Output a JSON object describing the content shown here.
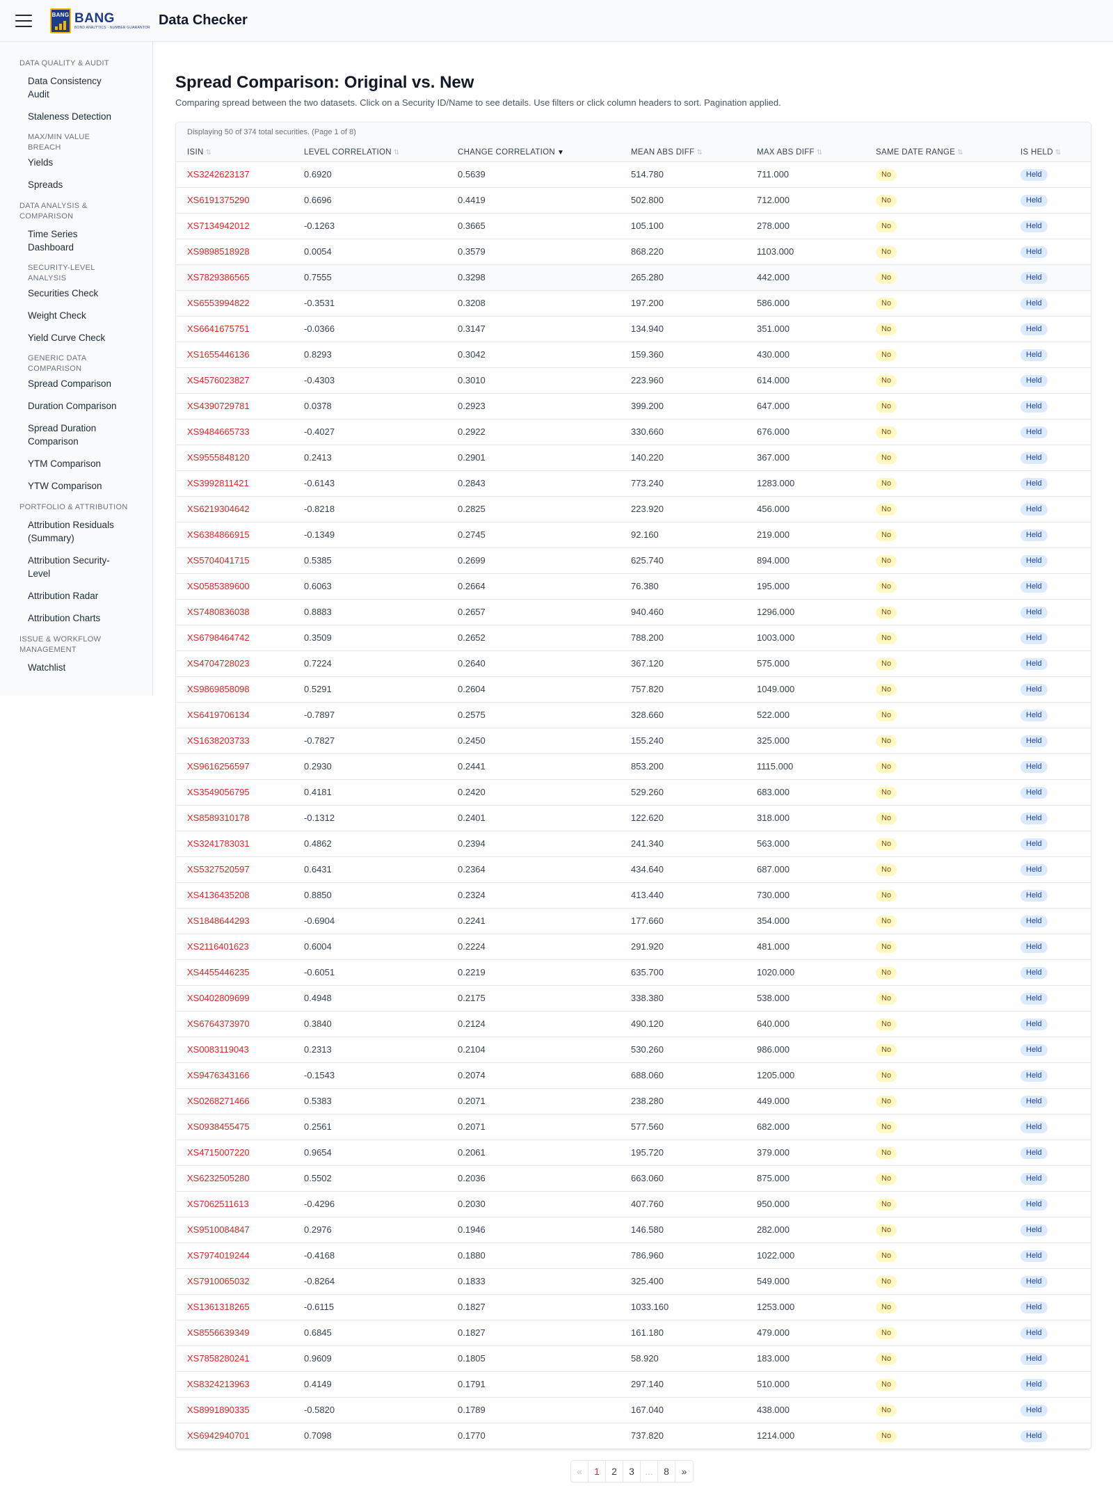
{
  "header": {
    "app_title": "Data Checker",
    "logo_mark": "BANG",
    "logo_name": "BANG",
    "logo_tagline": "BOND ANALYTICS · NUMBER GUARANTOR"
  },
  "sidebar": {
    "sections": [
      {
        "title": "DATA QUALITY & AUDIT",
        "entries": [
          {
            "type": "item",
            "label": "Data Consistency Audit"
          },
          {
            "type": "item",
            "label": "Staleness Detection"
          },
          {
            "type": "sub",
            "label": "MAX/MIN VALUE BREACH"
          },
          {
            "type": "item",
            "label": "Yields"
          },
          {
            "type": "item",
            "label": "Spreads"
          }
        ]
      },
      {
        "title": "DATA ANALYSIS & COMPARISON",
        "entries": [
          {
            "type": "item",
            "label": "Time Series Dashboard"
          },
          {
            "type": "sub",
            "label": "SECURITY-LEVEL ANALYSIS"
          },
          {
            "type": "item",
            "label": "Securities Check"
          },
          {
            "type": "item",
            "label": "Weight Check"
          },
          {
            "type": "item",
            "label": "Yield Curve Check"
          },
          {
            "type": "sub",
            "label": "GENERIC DATA COMPARISON"
          },
          {
            "type": "item",
            "label": "Spread Comparison"
          },
          {
            "type": "item",
            "label": "Duration Comparison"
          },
          {
            "type": "item",
            "label": "Spread Duration Comparison"
          },
          {
            "type": "item",
            "label": "YTM Comparison"
          },
          {
            "type": "item",
            "label": "YTW Comparison"
          }
        ]
      },
      {
        "title": "PORTFOLIO & ATTRIBUTION",
        "entries": [
          {
            "type": "item",
            "label": "Attribution Residuals (Summary)"
          },
          {
            "type": "item",
            "label": "Attribution Security-Level"
          },
          {
            "type": "item",
            "label": "Attribution Radar"
          },
          {
            "type": "item",
            "label": "Attribution Charts"
          }
        ]
      },
      {
        "title": "ISSUE & WORKFLOW MANAGEMENT",
        "entries": [
          {
            "type": "item",
            "label": "Watchlist"
          }
        ]
      }
    ]
  },
  "main": {
    "title": "Spread Comparison: Original vs. New",
    "description": "Comparing spread between the two datasets. Click on a Security ID/Name to see details. Use filters or click column headers to sort. Pagination applied.",
    "info": "Displaying 50 of 374 total securities. (Page 1 of 8)",
    "sort_icon": "⇅",
    "sort_active_icon": "▼",
    "columns": [
      {
        "label": "ISIN",
        "sort": "none"
      },
      {
        "label": "LEVEL CORRELATION",
        "sort": "none"
      },
      {
        "label": "CHANGE CORRELATION",
        "sort": "desc"
      },
      {
        "label": "MEAN ABS DIFF",
        "sort": "none"
      },
      {
        "label": "MAX ABS DIFF",
        "sort": "none"
      },
      {
        "label": "SAME DATE RANGE",
        "sort": "none"
      },
      {
        "label": "IS HELD",
        "sort": "none"
      }
    ],
    "rows": [
      [
        "XS3242623137",
        "0.6920",
        "0.5639",
        "514.780",
        "711.000",
        "No",
        "Held"
      ],
      [
        "XS6191375290",
        "0.6696",
        "0.4419",
        "502.800",
        "712.000",
        "No",
        "Held"
      ],
      [
        "XS7134942012",
        "-0.1263",
        "0.3665",
        "105.100",
        "278.000",
        "No",
        "Held"
      ],
      [
        "XS9898518928",
        "0.0054",
        "0.3579",
        "868.220",
        "1103.000",
        "No",
        "Held"
      ],
      [
        "XS7829386565",
        "0.7555",
        "0.3298",
        "265.280",
        "442.000",
        "No",
        "Held"
      ],
      [
        "XS6553994822",
        "-0.3531",
        "0.3208",
        "197.200",
        "586.000",
        "No",
        "Held"
      ],
      [
        "XS6641675751",
        "-0.0366",
        "0.3147",
        "134.940",
        "351.000",
        "No",
        "Held"
      ],
      [
        "XS1655446136",
        "0.8293",
        "0.3042",
        "159.360",
        "430.000",
        "No",
        "Held"
      ],
      [
        "XS4576023827",
        "-0.4303",
        "0.3010",
        "223.960",
        "614.000",
        "No",
        "Held"
      ],
      [
        "XS4390729781",
        "0.0378",
        "0.2923",
        "399.200",
        "647.000",
        "No",
        "Held"
      ],
      [
        "XS9484665733",
        "-0.4027",
        "0.2922",
        "330.660",
        "676.000",
        "No",
        "Held"
      ],
      [
        "XS9555848120",
        "0.2413",
        "0.2901",
        "140.220",
        "367.000",
        "No",
        "Held"
      ],
      [
        "XS3992811421",
        "-0.6143",
        "0.2843",
        "773.240",
        "1283.000",
        "No",
        "Held"
      ],
      [
        "XS6219304642",
        "-0.8218",
        "0.2825",
        "223.920",
        "456.000",
        "No",
        "Held"
      ],
      [
        "XS6384866915",
        "-0.1349",
        "0.2745",
        "92.160",
        "219.000",
        "No",
        "Held"
      ],
      [
        "XS5704041715",
        "0.5385",
        "0.2699",
        "625.740",
        "894.000",
        "No",
        "Held"
      ],
      [
        "XS0585389600",
        "0.6063",
        "0.2664",
        "76.380",
        "195.000",
        "No",
        "Held"
      ],
      [
        "XS7480836038",
        "0.8883",
        "0.2657",
        "940.460",
        "1296.000",
        "No",
        "Held"
      ],
      [
        "XS6798464742",
        "0.3509",
        "0.2652",
        "788.200",
        "1003.000",
        "No",
        "Held"
      ],
      [
        "XS4704728023",
        "0.7224",
        "0.2640",
        "367.120",
        "575.000",
        "No",
        "Held"
      ],
      [
        "XS9869858098",
        "0.5291",
        "0.2604",
        "757.820",
        "1049.000",
        "No",
        "Held"
      ],
      [
        "XS6419706134",
        "-0.7897",
        "0.2575",
        "328.660",
        "522.000",
        "No",
        "Held"
      ],
      [
        "XS1638203733",
        "-0.7827",
        "0.2450",
        "155.240",
        "325.000",
        "No",
        "Held"
      ],
      [
        "XS9616256597",
        "0.2930",
        "0.2441",
        "853.200",
        "1115.000",
        "No",
        "Held"
      ],
      [
        "XS3549056795",
        "0.4181",
        "0.2420",
        "529.260",
        "683.000",
        "No",
        "Held"
      ],
      [
        "XS8589310178",
        "-0.1312",
        "0.2401",
        "122.620",
        "318.000",
        "No",
        "Held"
      ],
      [
        "XS3241783031",
        "0.4862",
        "0.2394",
        "241.340",
        "563.000",
        "No",
        "Held"
      ],
      [
        "XS5327520597",
        "0.6431",
        "0.2364",
        "434.640",
        "687.000",
        "No",
        "Held"
      ],
      [
        "XS4136435208",
        "0.8850",
        "0.2324",
        "413.440",
        "730.000",
        "No",
        "Held"
      ],
      [
        "XS1848644293",
        "-0.6904",
        "0.2241",
        "177.660",
        "354.000",
        "No",
        "Held"
      ],
      [
        "XS2116401623",
        "0.6004",
        "0.2224",
        "291.920",
        "481.000",
        "No",
        "Held"
      ],
      [
        "XS4455446235",
        "-0.6051",
        "0.2219",
        "635.700",
        "1020.000",
        "No",
        "Held"
      ],
      [
        "XS0402809699",
        "0.4948",
        "0.2175",
        "338.380",
        "538.000",
        "No",
        "Held"
      ],
      [
        "XS6764373970",
        "0.3840",
        "0.2124",
        "490.120",
        "640.000",
        "No",
        "Held"
      ],
      [
        "XS0083119043",
        "0.2313",
        "0.2104",
        "530.260",
        "986.000",
        "No",
        "Held"
      ],
      [
        "XS9476343166",
        "-0.1543",
        "0.2074",
        "688.060",
        "1205.000",
        "No",
        "Held"
      ],
      [
        "XS0268271466",
        "0.5383",
        "0.2071",
        "238.280",
        "449.000",
        "No",
        "Held"
      ],
      [
        "XS0938455475",
        "0.2561",
        "0.2071",
        "577.560",
        "682.000",
        "No",
        "Held"
      ],
      [
        "XS4715007220",
        "0.9654",
        "0.2061",
        "195.720",
        "379.000",
        "No",
        "Held"
      ],
      [
        "XS6232505280",
        "0.5502",
        "0.2036",
        "663.060",
        "875.000",
        "No",
        "Held"
      ],
      [
        "XS7062511613",
        "-0.4296",
        "0.2030",
        "407.760",
        "950.000",
        "No",
        "Held"
      ],
      [
        "XS9510084847",
        "0.2976",
        "0.1946",
        "146.580",
        "282.000",
        "No",
        "Held"
      ],
      [
        "XS7974019244",
        "-0.4168",
        "0.1880",
        "786.960",
        "1022.000",
        "No",
        "Held"
      ],
      [
        "XS7910065032",
        "-0.8264",
        "0.1833",
        "325.400",
        "549.000",
        "No",
        "Held"
      ],
      [
        "XS1361318265",
        "-0.6115",
        "0.1827",
        "1033.160",
        "1253.000",
        "No",
        "Held"
      ],
      [
        "XS8556639349",
        "0.6845",
        "0.1827",
        "161.180",
        "479.000",
        "No",
        "Held"
      ],
      [
        "XS7858280241",
        "0.9609",
        "0.1805",
        "58.920",
        "183.000",
        "No",
        "Held"
      ],
      [
        "XS8324213963",
        "0.4149",
        "0.1791",
        "297.140",
        "510.000",
        "No",
        "Held"
      ],
      [
        "XS8991890335",
        "-0.5820",
        "0.1789",
        "167.040",
        "438.000",
        "No",
        "Held"
      ],
      [
        "XS6942940701",
        "0.7098",
        "0.1770",
        "737.820",
        "1214.000",
        "No",
        "Held"
      ]
    ]
  },
  "pagination": {
    "items": [
      {
        "label": "«",
        "state": "disabled"
      },
      {
        "label": "1",
        "state": "current"
      },
      {
        "label": "2",
        "state": "link"
      },
      {
        "label": "3",
        "state": "link"
      },
      {
        "label": "...",
        "state": "disabled"
      },
      {
        "label": "8",
        "state": "link"
      },
      {
        "label": "»",
        "state": "link"
      }
    ]
  }
}
